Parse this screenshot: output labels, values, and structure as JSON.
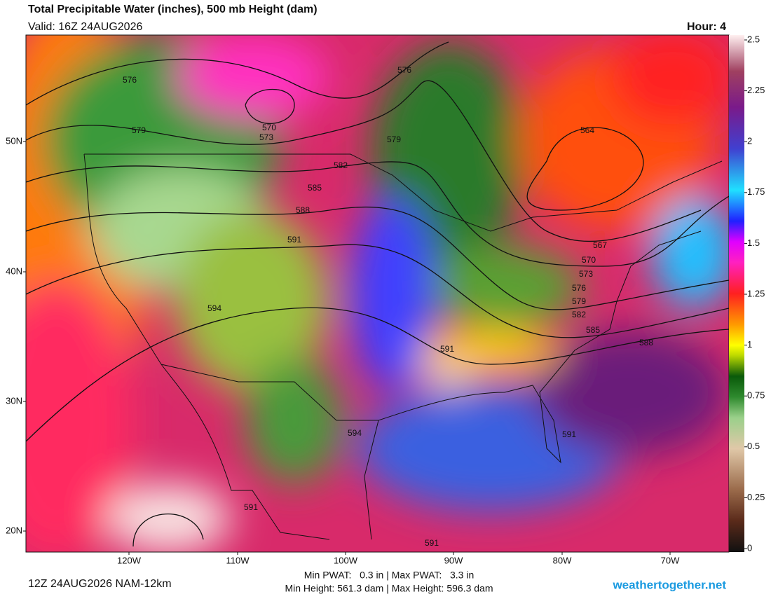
{
  "header": {
    "title": "Total Precipitable Water (inches), 500 mb Height (dam)",
    "valid": "Valid: 16Z 24AUG2026",
    "hour": "Hour: 4"
  },
  "colorbar": {
    "ticks": [
      2.5,
      2.25,
      2,
      1.75,
      1.5,
      1.25,
      1,
      0.75,
      0.5,
      0.25,
      0
    ]
  },
  "latitude_labels": [
    "50N",
    "40N",
    "30N",
    "20N"
  ],
  "longitude_labels": [
    "120W",
    "110W",
    "100W",
    "90W",
    "80W",
    "70W"
  ],
  "contour_labels": [
    576,
    579,
    570,
    573,
    576,
    579,
    582,
    585,
    588,
    591,
    594,
    591,
    594,
    591,
    564,
    567,
    570,
    573,
    576,
    579,
    582,
    585,
    588,
    591,
    591
  ],
  "footer": {
    "run": "12Z 24AUG2026 NAM-12km",
    "pwat_range": "Min PWAT:   0.3 in | Max PWAT:   3.3 in",
    "height_range": "Min Height: 561.3 dam | Max Height: 596.3 dam",
    "site": "weathertogether.net"
  }
}
